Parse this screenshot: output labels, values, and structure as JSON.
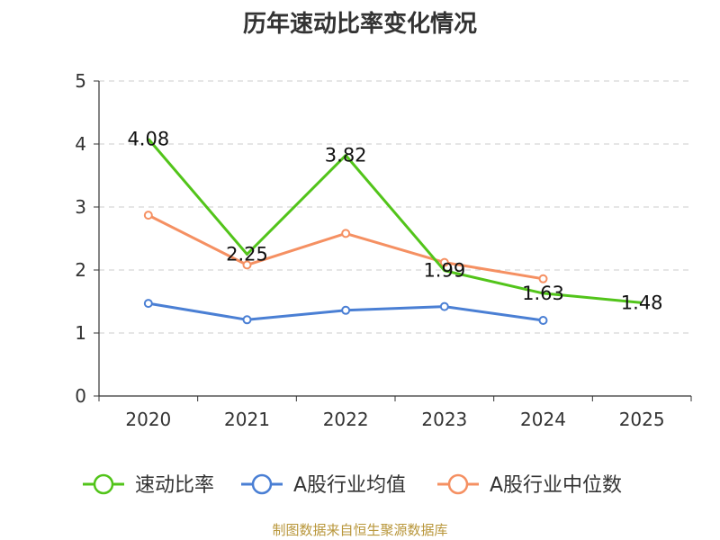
{
  "chart_data": {
    "type": "line",
    "title": "历年速动比率变化情况",
    "categories": [
      "2020",
      "2021",
      "2022",
      "2023",
      "2024",
      "2025"
    ],
    "ylim": [
      0,
      5
    ],
    "yticks": [
      0,
      1,
      2,
      3,
      4,
      5
    ],
    "grid": true,
    "legend_position": "bottom",
    "series": [
      {
        "name": "速动比率",
        "color": "#52c41a",
        "values": [
          4.08,
          2.25,
          3.82,
          1.99,
          1.63,
          1.48
        ],
        "labels": [
          "4.08",
          "2.25",
          "3.82",
          "1.99",
          "1.63",
          "1.48"
        ]
      },
      {
        "name": "A股行业均值",
        "color": "#4a7fd4",
        "values": [
          1.47,
          1.21,
          1.36,
          1.42,
          1.2,
          null
        ]
      },
      {
        "name": "A股行业中位数",
        "color": "#f59062",
        "values": [
          2.87,
          2.08,
          2.58,
          2.12,
          1.86,
          null
        ]
      }
    ]
  },
  "source": "制图数据来自恒生聚源数据库"
}
